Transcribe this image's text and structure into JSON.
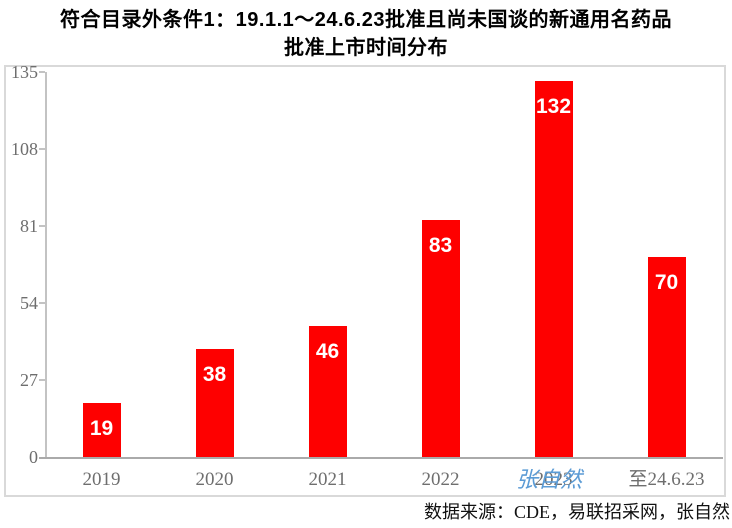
{
  "title": {
    "line1": "符合目录外条件1：19.1.1～24.6.23批准且尚未国谈的新通用名药品",
    "line2": "批准上市时间分布"
  },
  "chart_data": {
    "type": "bar",
    "title": "符合目录外条件1：19.1.1～24.6.23批准且尚未国谈的新通用名药品 批准上市时间分布",
    "categories": [
      "2019",
      "2020",
      "2021",
      "2022",
      "2023",
      "至24.6.23"
    ],
    "values": [
      19,
      38,
      46,
      83,
      132,
      70
    ],
    "yticks": [
      0,
      27,
      54,
      81,
      108,
      135
    ],
    "ylim": [
      0,
      135
    ],
    "xlabel": "",
    "ylabel": "",
    "grid": false,
    "legend": false,
    "bar_color": "#fe0000",
    "value_label_color": "#ffffff",
    "axis_color": "#c3c3c3",
    "tick_text_color": "#6e6e6e"
  },
  "watermark": {
    "text": "张自然",
    "color": "#5b9bd5"
  },
  "source": {
    "text": "数据来源：CDE，易联招采网，张自然"
  }
}
